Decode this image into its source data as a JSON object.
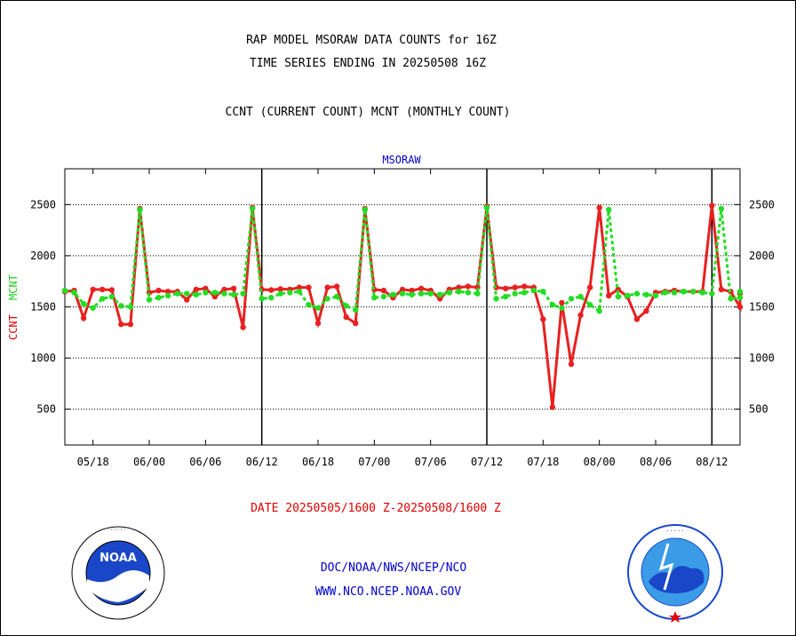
{
  "header": {
    "title_line1": "RAP MODEL MSORAW DATA COUNTS for 16Z",
    "title_line2": "TIME SERIES ENDING IN 20250508 16Z",
    "title_line3": "CCNT (CURRENT COUNT) MCNT (MONTHLY COUNT)"
  },
  "footer": {
    "date_range": "DATE 20250505/1600 Z-20250508/1600 Z",
    "credit_line1": "DOC/NOAA/NWS/NCEP/NCO",
    "credit_line2": "WWW.NCO.NCEP.NOAA.GOV",
    "logo_left_text": "NOAA",
    "logo_left_ring": "NATIONAL OCEANIC AND ATMOSPHERIC ADMINISTRATION · U.S. DEPARTMENT OF COMMERCE",
    "logo_right_ring": "NATIONAL WEATHER SERVICE"
  },
  "colors": {
    "ccnt": "#e82020",
    "mcnt": "#22dd22",
    "axis_label_blue": "#0000cc"
  },
  "chart_data": {
    "type": "line",
    "title": "MSORAW",
    "ylabel_ccnt": "CCNT",
    "ylabel_mcnt": "MCNT",
    "ylim": [
      150,
      2850
    ],
    "yticks": [
      500,
      1000,
      1500,
      2000,
      2500
    ],
    "x_start_hour": 15,
    "x_end_hour": 87,
    "x_tick_hours": [
      18,
      24,
      30,
      36,
      42,
      48,
      54,
      60,
      66,
      72,
      78,
      84
    ],
    "x_tick_labels": [
      "05/18",
      "06/00",
      "06/06",
      "06/12",
      "06/18",
      "07/00",
      "07/06",
      "07/12",
      "07/18",
      "08/00",
      "08/06",
      "08/12"
    ],
    "day_boundaries": [
      36,
      60,
      84
    ],
    "grid": true,
    "series": [
      {
        "name": "CCNT",
        "points": [
          [
            15,
            1650
          ],
          [
            16,
            1660
          ],
          [
            17,
            1390
          ],
          [
            18,
            1670
          ],
          [
            19,
            1670
          ],
          [
            20,
            1665
          ],
          [
            21,
            1330
          ],
          [
            22,
            1330
          ],
          [
            23,
            2460
          ],
          [
            24,
            1640
          ],
          [
            25,
            1660
          ],
          [
            26,
            1650
          ],
          [
            27,
            1650
          ],
          [
            28,
            1570
          ],
          [
            29,
            1670
          ],
          [
            30,
            1680
          ],
          [
            31,
            1600
          ],
          [
            32,
            1670
          ],
          [
            33,
            1680
          ],
          [
            34,
            1300
          ],
          [
            35,
            2470
          ],
          [
            36,
            1670
          ],
          [
            37,
            1665
          ],
          [
            38,
            1675
          ],
          [
            39,
            1670
          ],
          [
            40,
            1690
          ],
          [
            41,
            1690
          ],
          [
            42,
            1340
          ],
          [
            43,
            1690
          ],
          [
            44,
            1700
          ],
          [
            45,
            1400
          ],
          [
            46,
            1340
          ],
          [
            47,
            2460
          ],
          [
            48,
            1670
          ],
          [
            49,
            1660
          ],
          [
            50,
            1590
          ],
          [
            51,
            1670
          ],
          [
            52,
            1660
          ],
          [
            53,
            1680
          ],
          [
            54,
            1660
          ],
          [
            55,
            1580
          ],
          [
            56,
            1670
          ],
          [
            57,
            1690
          ],
          [
            58,
            1700
          ],
          [
            59,
            1690
          ],
          [
            60,
            2480
          ],
          [
            61,
            1690
          ],
          [
            62,
            1680
          ],
          [
            63,
            1690
          ],
          [
            64,
            1700
          ],
          [
            65,
            1690
          ],
          [
            66,
            1380
          ],
          [
            67,
            520
          ],
          [
            68,
            1540
          ],
          [
            69,
            940
          ],
          [
            70,
            1420
          ],
          [
            71,
            1690
          ],
          [
            72,
            2470
          ],
          [
            73,
            1610
          ],
          [
            74,
            1670
          ],
          [
            75,
            1600
          ],
          [
            76,
            1380
          ],
          [
            77,
            1460
          ],
          [
            78,
            1640
          ],
          [
            79,
            1650
          ],
          [
            80,
            1660
          ],
          [
            81,
            1650
          ],
          [
            82,
            1650
          ],
          [
            83,
            1650
          ],
          [
            84,
            2490
          ],
          [
            85,
            1670
          ],
          [
            86,
            1650
          ],
          [
            87,
            1500
          ],
          [
            87.8,
            1630
          ]
        ]
      },
      {
        "name": "MCNT",
        "points": [
          [
            15,
            1660
          ],
          [
            16,
            1640
          ],
          [
            17,
            1530
          ],
          [
            18,
            1490
          ],
          [
            19,
            1580
          ],
          [
            20,
            1600
          ],
          [
            21,
            1510
          ],
          [
            22,
            1500
          ],
          [
            23,
            2450
          ],
          [
            24,
            1570
          ],
          [
            25,
            1590
          ],
          [
            26,
            1610
          ],
          [
            27,
            1630
          ],
          [
            28,
            1630
          ],
          [
            29,
            1620
          ],
          [
            30,
            1640
          ],
          [
            31,
            1640
          ],
          [
            32,
            1630
          ],
          [
            33,
            1620
          ],
          [
            34,
            1630
          ],
          [
            35,
            2460
          ],
          [
            36,
            1580
          ],
          [
            37,
            1590
          ],
          [
            38,
            1630
          ],
          [
            39,
            1640
          ],
          [
            40,
            1650
          ],
          [
            41,
            1520
          ],
          [
            42,
            1490
          ],
          [
            43,
            1580
          ],
          [
            44,
            1600
          ],
          [
            45,
            1510
          ],
          [
            46,
            1470
          ],
          [
            47,
            2450
          ],
          [
            48,
            1590
          ],
          [
            49,
            1600
          ],
          [
            50,
            1620
          ],
          [
            51,
            1630
          ],
          [
            52,
            1620
          ],
          [
            53,
            1630
          ],
          [
            54,
            1630
          ],
          [
            55,
            1620
          ],
          [
            56,
            1640
          ],
          [
            57,
            1650
          ],
          [
            58,
            1640
          ],
          [
            59,
            1630
          ],
          [
            60,
            2470
          ],
          [
            61,
            1580
          ],
          [
            62,
            1600
          ],
          [
            63,
            1630
          ],
          [
            64,
            1640
          ],
          [
            65,
            1660
          ],
          [
            66,
            1650
          ],
          [
            67,
            1520
          ],
          [
            68,
            1490
          ],
          [
            69,
            1580
          ],
          [
            70,
            1600
          ],
          [
            71,
            1520
          ],
          [
            72,
            1460
          ],
          [
            73,
            2450
          ],
          [
            74,
            1600
          ],
          [
            75,
            1610
          ],
          [
            76,
            1630
          ],
          [
            77,
            1620
          ],
          [
            78,
            1610
          ],
          [
            79,
            1640
          ],
          [
            80,
            1640
          ],
          [
            81,
            1650
          ],
          [
            82,
            1650
          ],
          [
            83,
            1640
          ],
          [
            84,
            1630
          ],
          [
            85,
            2460
          ],
          [
            86,
            1580
          ],
          [
            87,
            1590
          ],
          [
            88,
            1650
          ]
        ]
      }
    ]
  }
}
